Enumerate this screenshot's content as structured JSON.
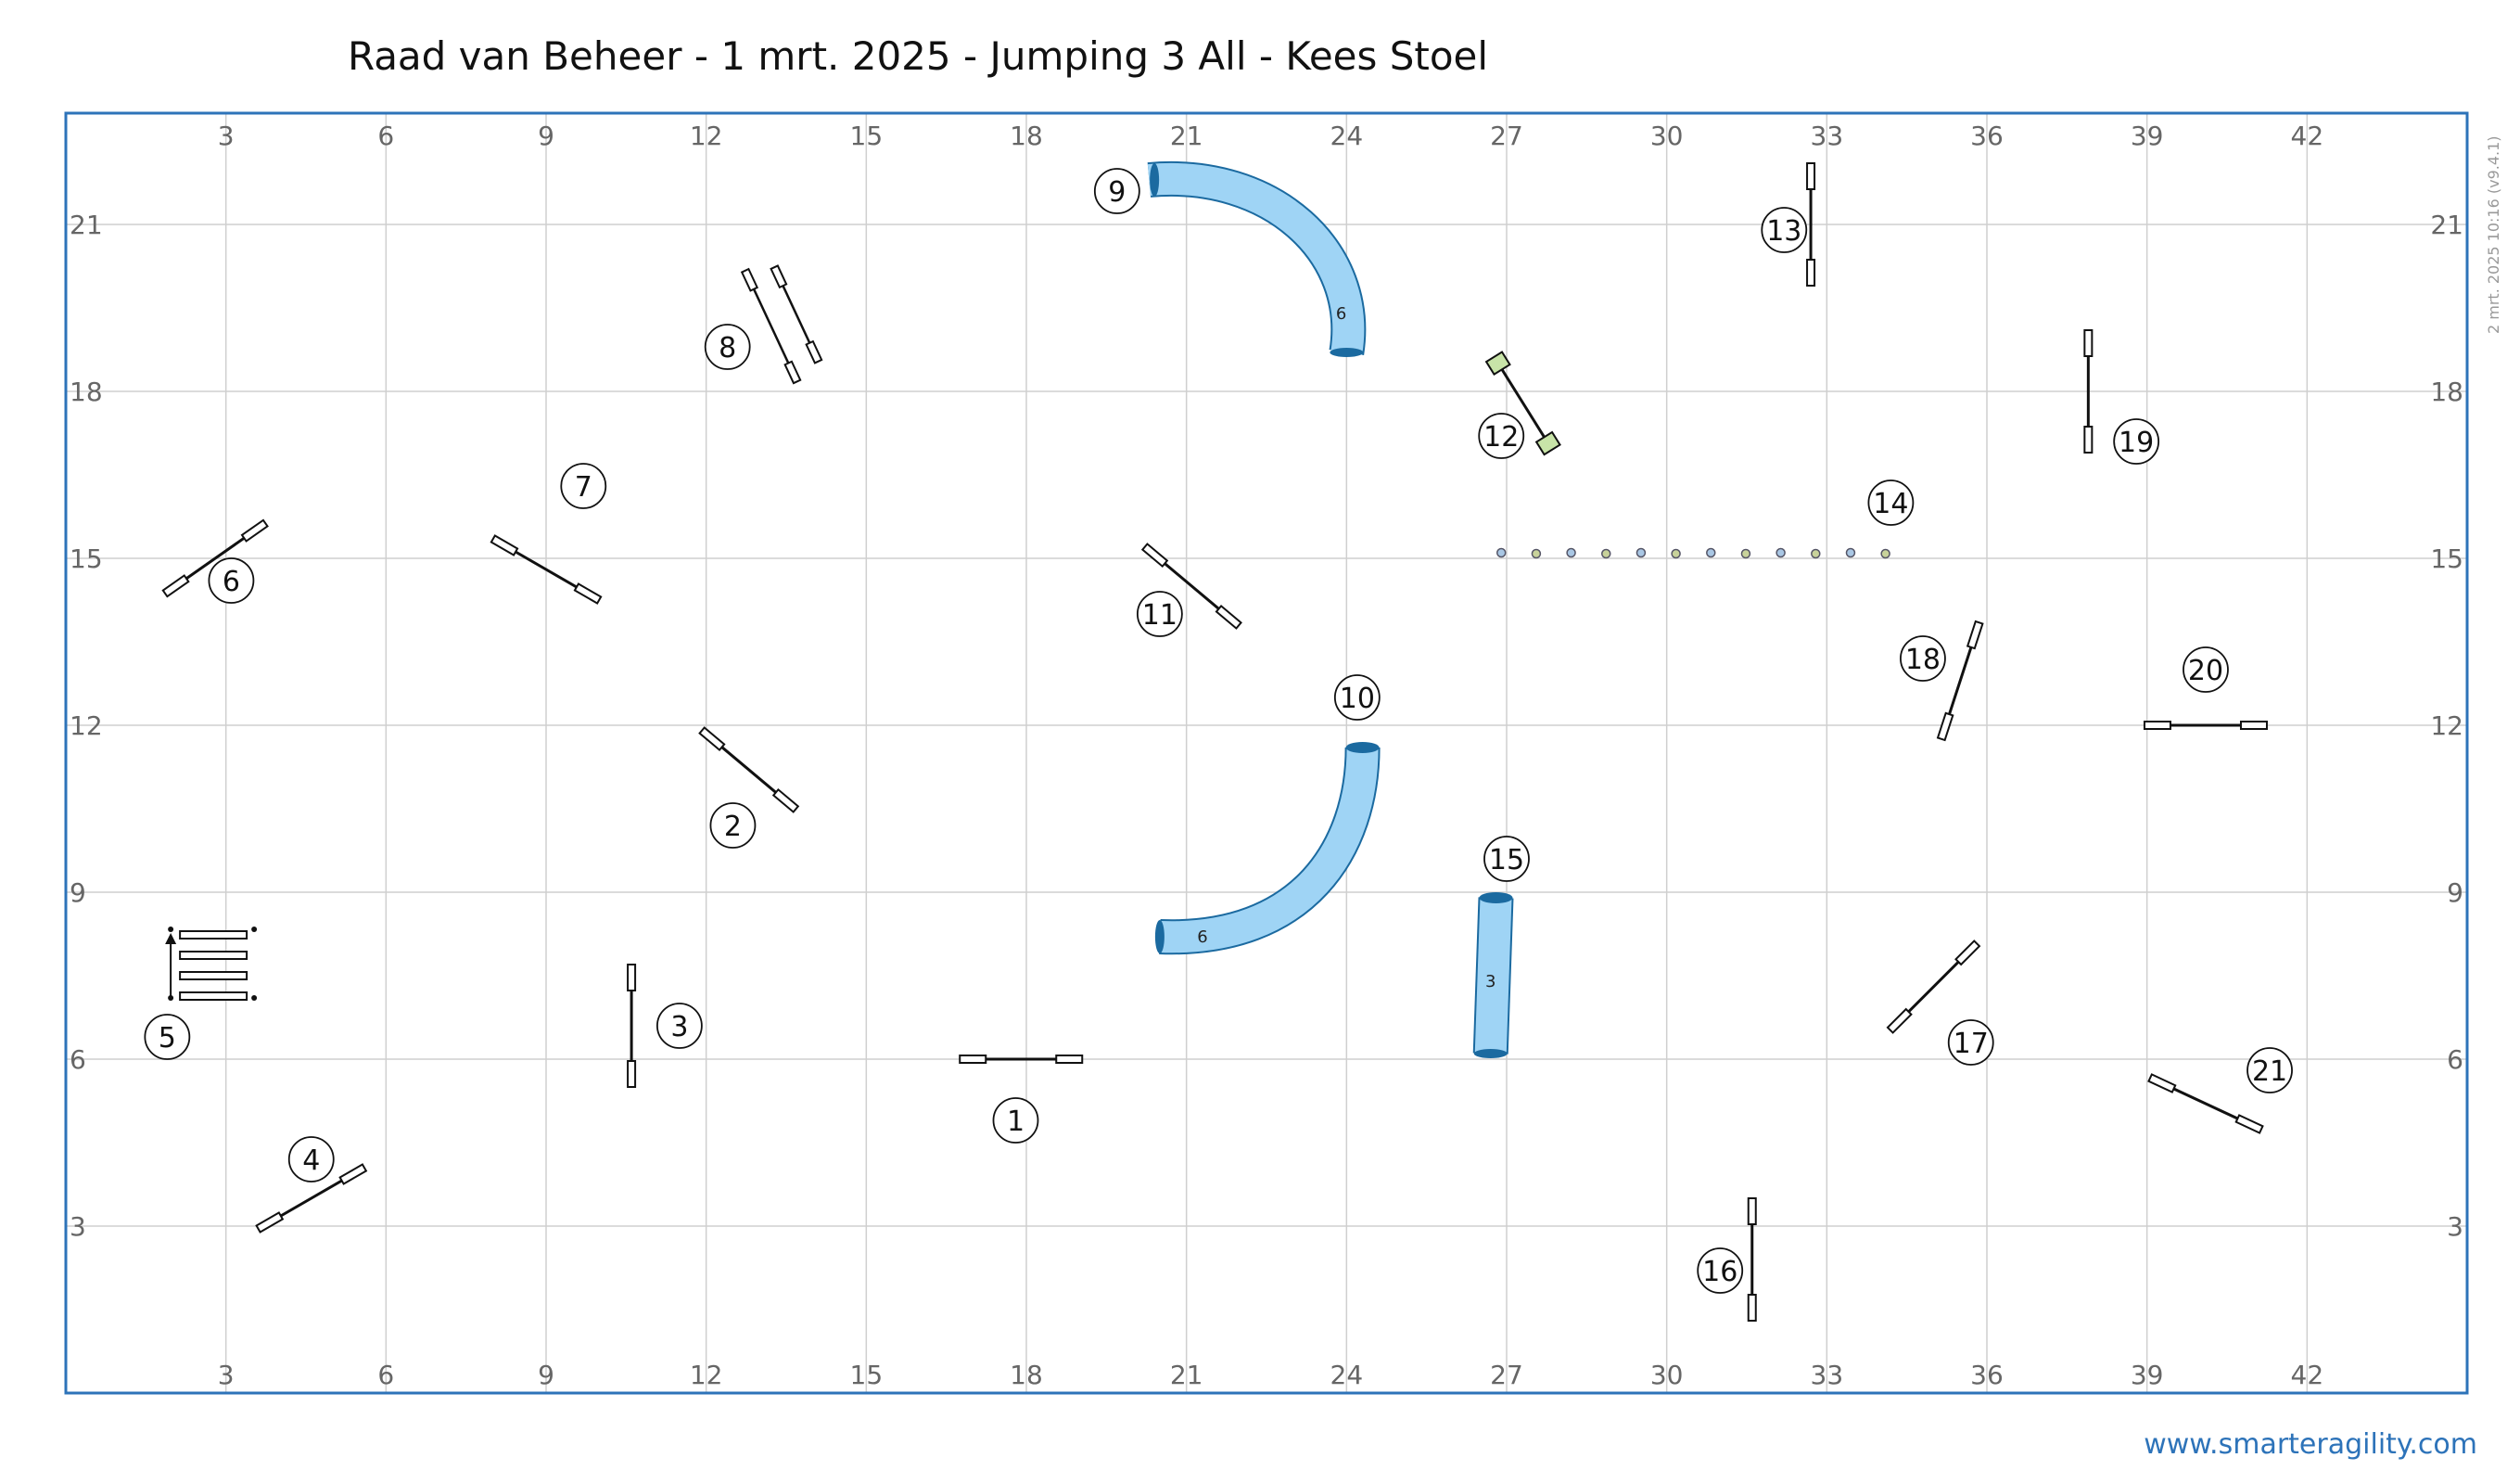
{
  "title": "Raad van Beheer - 1 mrt. 2025 - Jumping 3 All - Kees Stoel",
  "watermark": "www.smarteragility.com",
  "version_stamp": "2 mrt. 2025 10:16  (v9.4.1)",
  "colors": {
    "border": "#2d73b9",
    "grid": "#cfcfcf",
    "tunnel_fill": "#9fd4f5",
    "tunnel_stroke": "#1b6aa0",
    "wing_fill": "#c8e4a8"
  },
  "arena": {
    "x_ticks": [
      3,
      6,
      9,
      12,
      15,
      18,
      21,
      24,
      27,
      30,
      33,
      36,
      39,
      42
    ],
    "y_ticks": [
      3,
      6,
      9,
      12,
      15,
      18,
      21
    ]
  },
  "obstacles": [
    {
      "number": "1",
      "type": "jump",
      "x": 17.9,
      "y": 6.0,
      "angle": 0,
      "label_x": 17.8,
      "label_y": 4.9
    },
    {
      "number": "2",
      "type": "jump",
      "x": 12.8,
      "y": 11.2,
      "angle": 40,
      "label_x": 12.5,
      "label_y": 10.2
    },
    {
      "number": "3",
      "type": "jump",
      "x": 10.6,
      "y": 6.6,
      "angle": 90,
      "label_x": 11.5,
      "label_y": 6.6
    },
    {
      "number": "4",
      "type": "jump",
      "x": 4.6,
      "y": 3.5,
      "angle": -30,
      "label_x": 4.6,
      "label_y": 4.2
    },
    {
      "number": "5",
      "type": "weave",
      "x": 2.0,
      "y": 7.7,
      "label_x": 1.9,
      "label_y": 6.4
    },
    {
      "number": "6",
      "type": "jump",
      "x": 2.8,
      "y": 15.0,
      "angle": -35,
      "label_x": 3.1,
      "label_y": 14.6
    },
    {
      "number": "7",
      "type": "jump",
      "x": 9.0,
      "y": 14.8,
      "angle": 30,
      "label_x": 9.7,
      "label_y": 16.3
    },
    {
      "number": "8",
      "type": "double",
      "x": 13.5,
      "y": 19.3,
      "angle": 65,
      "label_x": 12.4,
      "label_y": 18.8
    },
    {
      "number": "9",
      "type": "tunnel",
      "length": "6",
      "label_x": 19.7,
      "label_y": 21.6
    },
    {
      "number": "10",
      "type": "tunnel",
      "length": "6",
      "label_x": 24.2,
      "label_y": 12.5
    },
    {
      "number": "11",
      "type": "jump",
      "x": 21.1,
      "y": 14.5,
      "angle": 40,
      "label_x": 20.5,
      "label_y": 14.0
    },
    {
      "number": "12",
      "type": "winged",
      "x": 27.3,
      "y": 17.8,
      "angle": 58,
      "label_x": 26.9,
      "label_y": 17.2
    },
    {
      "number": "13",
      "type": "jump",
      "x": 32.7,
      "y": 21.0,
      "angle": 90,
      "label_x": 32.2,
      "label_y": 20.9
    },
    {
      "number": "14",
      "type": "long",
      "x": 30.5,
      "y": 15.1,
      "label_x": 34.2,
      "label_y": 16.0
    },
    {
      "number": "15",
      "type": "tunnel",
      "length": "3",
      "label_x": 27.0,
      "label_y": 9.6
    },
    {
      "number": "16",
      "type": "jump",
      "x": 31.6,
      "y": 2.4,
      "angle": 90,
      "label_x": 31.0,
      "label_y": 2.2
    },
    {
      "number": "17",
      "type": "jump",
      "x": 35.0,
      "y": 7.3,
      "angle": -45,
      "label_x": 35.7,
      "label_y": 6.3
    },
    {
      "number": "18",
      "type": "jump",
      "x": 35.5,
      "y": 12.8,
      "angle": -72,
      "label_x": 34.8,
      "label_y": 13.2
    },
    {
      "number": "19",
      "type": "jump",
      "x": 37.9,
      "y": 18.0,
      "angle": 90,
      "label_x": 38.8,
      "label_y": 17.1
    },
    {
      "number": "20",
      "type": "jump",
      "x": 40.1,
      "y": 12.0,
      "angle": 0,
      "label_x": 40.1,
      "label_y": 13.0
    },
    {
      "number": "21",
      "type": "jump",
      "x": 40.1,
      "y": 5.2,
      "angle": 25,
      "label_x": 41.3,
      "label_y": 5.8
    }
  ]
}
